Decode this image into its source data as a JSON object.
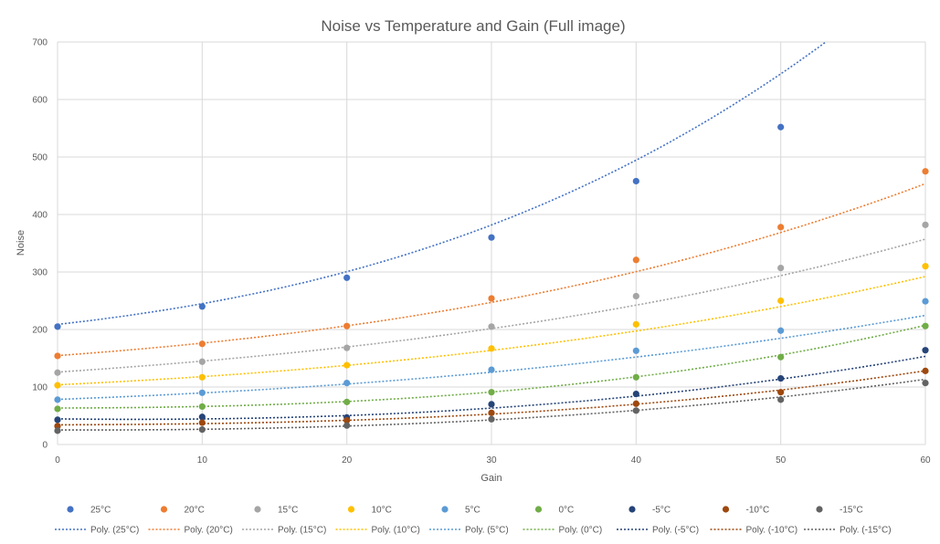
{
  "chart_data": {
    "type": "scatter",
    "title": "Noise vs Temperature and Gain (Full image)",
    "xlabel": "Gain",
    "ylabel": "Noise",
    "xlim": [
      0,
      60
    ],
    "ylim": [
      0,
      700
    ],
    "xticks": [
      "0",
      "10",
      "20",
      "30",
      "40",
      "50",
      "60"
    ],
    "yticks": [
      "0",
      "100",
      "200",
      "300",
      "400",
      "500",
      "600",
      "700"
    ],
    "grid": true,
    "legend_position": "bottom",
    "x": [
      0,
      10,
      20,
      30,
      40,
      50,
      60
    ],
    "series": [
      {
        "name": "25°C",
        "trend_name": "Poly. (25°C)",
        "color": "#4472C4",
        "values": [
          205,
          240,
          290,
          360,
          458,
          552,
          null
        ],
        "fit": [
          208.9,
          2.82,
          0.0684,
          0.00099
        ]
      },
      {
        "name": "20°C",
        "trend_name": "Poly. (20°C)",
        "color": "#ED7D31",
        "values": [
          154,
          175,
          206,
          254,
          321,
          378,
          475
        ],
        "fit": [
          154.7,
          1.8,
          0.0325,
          0.000342
        ]
      },
      {
        "name": "15°C",
        "trend_name": "Poly. (15°C)",
        "color": "#A5A5A5",
        "values": [
          125,
          144,
          168,
          205,
          258,
          307,
          382
        ],
        "fit": [
          125.9,
          1.69,
          0.0195,
          0.000276
        ]
      },
      {
        "name": "10°C",
        "trend_name": "Poly. (10°C)",
        "color": "#FFC000",
        "values": [
          103,
          117,
          138,
          167,
          209,
          250,
          310
        ],
        "fit": [
          103.8,
          1.2,
          0.0208,
          0.000192
        ]
      },
      {
        "name": "5°C",
        "trend_name": "Poly. (5°C)",
        "color": "#5B9BD5",
        "values": [
          78,
          90,
          107,
          130,
          163,
          198,
          249
        ],
        "fit": [
          78.5,
          0.92,
          0.0184,
          0.000114
        ]
      },
      {
        "name": "0°C",
        "trend_name": "Poly. (0°C)",
        "color": "#70AD47",
        "values": [
          62,
          66,
          74,
          91,
          117,
          152,
          206
        ],
        "fit": [
          63.5,
          0.03,
          0.0204,
          0.000318
        ]
      },
      {
        "name": "-5°C",
        "trend_name": "Poly. (-5°C)",
        "color": "#264478",
        "values": [
          43,
          48,
          47,
          70,
          88,
          115,
          164
        ],
        "fit": [
          44.6,
          -0.29,
          0.0259,
          0.000152
        ]
      },
      {
        "name": "-10°C",
        "trend_name": "Poly. (-10°C)",
        "color": "#9E480E",
        "values": [
          32,
          38,
          42,
          55,
          71,
          91,
          128
        ],
        "fit": [
          34.3,
          0.05,
          0.0128,
          0.000208
        ]
      },
      {
        "name": "-15°C",
        "trend_name": "Poly. (-15°C)",
        "color": "#636363",
        "values": [
          24,
          26,
          33,
          44,
          59,
          78,
          107
        ],
        "fit": [
          25.3,
          -0.07,
          0.0179,
          0.000129
        ]
      }
    ]
  }
}
